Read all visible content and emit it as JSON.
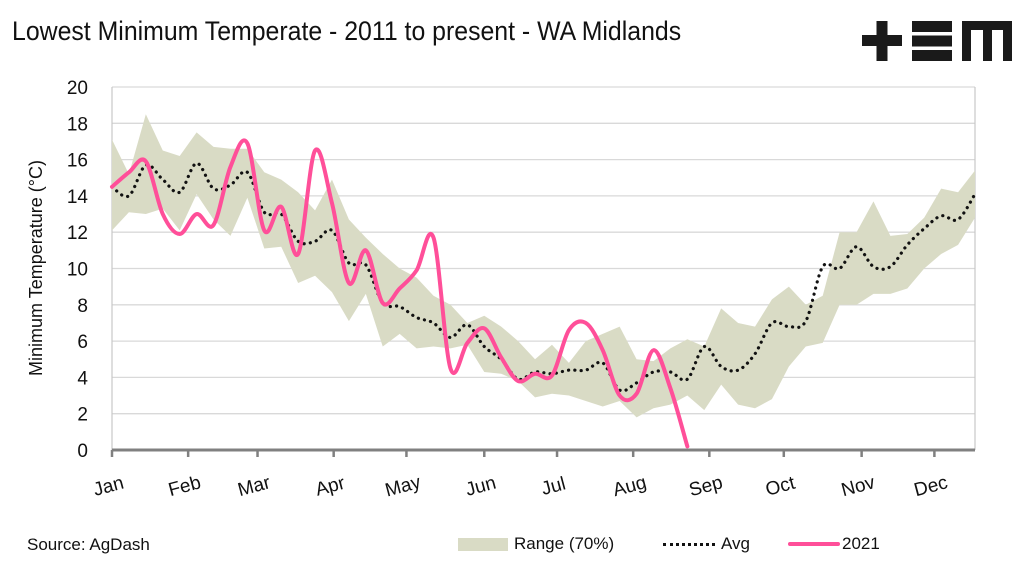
{
  "header": {
    "title": "Lowest Minimum Temperate - 2011 to present - WA Midlands",
    "logo_text": "+EM",
    "logo_icon": "tem-logo"
  },
  "footer": {
    "source": "Source: AgDash"
  },
  "legend": {
    "range_label": "Range (70%)",
    "avg_label": "Avg",
    "year_label": "2021"
  },
  "colors": {
    "range_fill": "#d9dbc5",
    "avg_line": "#111111",
    "year_line": "#ff4f99",
    "grid": "#d9d9d9",
    "axis": "#808080"
  },
  "chart_data": {
    "type": "line",
    "title": "Lowest Minimum Temperate - 2011 to present - WA Midlands",
    "xlabel": "",
    "ylabel": "Minimum Temperature (°C)",
    "ylim": [
      0,
      20
    ],
    "yticks": [
      0,
      2,
      4,
      6,
      8,
      10,
      12,
      14,
      16,
      18,
      20
    ],
    "grid": true,
    "legend_position": "bottom-right",
    "x_unit": "week of year",
    "xlim": [
      0,
      51
    ],
    "month_ticks": [
      {
        "label": "Jan",
        "week": 0
      },
      {
        "label": "Feb",
        "week": 4.5
      },
      {
        "label": "Mar",
        "week": 8.6
      },
      {
        "label": "Apr",
        "week": 13.1
      },
      {
        "label": "May",
        "week": 17.4
      },
      {
        "label": "Jun",
        "week": 22
      },
      {
        "label": "Jul",
        "week": 26.3
      },
      {
        "label": "Aug",
        "week": 30.8
      },
      {
        "label": "Sep",
        "week": 35.3
      },
      {
        "label": "Oct",
        "week": 39.7
      },
      {
        "label": "Nov",
        "week": 44.3
      },
      {
        "label": "Dec",
        "week": 48.6
      }
    ],
    "series": [
      {
        "name": "Range (70%)",
        "kind": "band",
        "x": [
          0,
          1,
          2,
          3,
          4,
          5,
          6,
          7,
          8,
          9,
          10,
          11,
          12,
          13,
          14,
          15,
          16,
          17,
          18,
          19,
          20,
          21,
          22,
          23,
          24,
          25,
          26,
          27,
          28,
          29,
          30,
          31,
          32,
          33,
          34,
          35,
          36,
          37,
          38,
          39,
          40,
          41,
          42,
          43,
          44,
          45,
          46,
          47,
          48,
          49,
          50,
          51
        ],
        "upper": [
          17.1,
          15.2,
          18.5,
          16.5,
          16.2,
          17.5,
          16.7,
          16.6,
          16.6,
          15.3,
          14.9,
          14.2,
          13.2,
          14.9,
          12.7,
          11.7,
          10.8,
          10.0,
          9.5,
          8.5,
          8.0,
          7.0,
          7.4,
          6.8,
          6.0,
          5.0,
          5.8,
          4.8,
          6.0,
          6.4,
          6.8,
          5.0,
          4.9,
          5.6,
          6.1,
          5.7,
          7.8,
          7.0,
          6.8,
          8.3,
          9.0,
          8.0,
          8.5,
          12.0,
          12.0,
          13.7,
          11.8,
          11.9,
          12.8,
          14.4,
          14.2,
          15.4
        ],
        "lower": [
          12.1,
          13.1,
          13.0,
          13.3,
          12.1,
          14.1,
          12.7,
          11.8,
          13.9,
          11.1,
          11.2,
          9.2,
          9.6,
          8.7,
          7.1,
          8.6,
          5.7,
          6.4,
          5.6,
          5.7,
          5.6,
          5.8,
          4.3,
          4.2,
          3.8,
          2.9,
          3.1,
          3.0,
          2.7,
          2.4,
          2.7,
          1.8,
          2.3,
          2.5,
          3.0,
          2.2,
          3.6,
          2.5,
          2.3,
          2.8,
          4.6,
          5.7,
          5.9,
          8.0,
          8.0,
          8.6,
          8.6,
          8.9,
          10.0,
          10.8,
          11.3,
          12.8
        ]
      },
      {
        "name": "Avg",
        "kind": "dotted-line",
        "x": [
          0,
          1,
          2,
          3,
          4,
          5,
          6,
          7,
          8,
          9,
          10,
          11,
          12,
          13,
          14,
          15,
          16,
          17,
          18,
          19,
          20,
          21,
          22,
          23,
          24,
          25,
          26,
          27,
          28,
          29,
          30,
          31,
          32,
          33,
          34,
          35,
          36,
          37,
          38,
          39,
          40,
          41,
          42,
          43,
          44,
          45,
          46,
          47,
          48,
          49,
          50,
          51
        ],
        "values": [
          14.5,
          14.0,
          15.7,
          14.9,
          14.2,
          15.8,
          14.4,
          14.6,
          15.3,
          13.1,
          13.0,
          11.5,
          11.5,
          12.1,
          10.3,
          10.2,
          8.1,
          7.9,
          7.3,
          7.0,
          6.2,
          6.9,
          5.7,
          5.0,
          3.9,
          4.3,
          4.2,
          4.4,
          4.4,
          4.8,
          3.3,
          3.7,
          4.3,
          4.3,
          3.9,
          5.7,
          4.6,
          4.4,
          5.3,
          7.0,
          6.8,
          7.1,
          10.1,
          10.0,
          11.2,
          10.1,
          10.1,
          11.3,
          12.2,
          12.9,
          12.7,
          14.1
        ]
      },
      {
        "name": "2021",
        "kind": "line",
        "x": [
          0,
          1,
          2,
          3,
          4,
          5,
          6,
          7,
          8,
          9,
          10,
          11,
          12,
          13,
          14,
          15,
          16,
          17,
          18,
          19,
          20,
          21,
          22,
          23,
          24,
          25,
          26,
          27,
          28,
          29,
          30,
          31,
          32,
          33,
          34,
          35
        ],
        "values": [
          14.5,
          15.3,
          15.9,
          13.0,
          11.9,
          13.0,
          12.4,
          15.6,
          16.9,
          12.1,
          13.4,
          10.8,
          16.5,
          13.6,
          9.2,
          11.0,
          8.1,
          8.9,
          9.9,
          11.7,
          4.5,
          5.9,
          6.7,
          5.1,
          3.8,
          4.2,
          4.1,
          6.6,
          7.0,
          5.5,
          3.0,
          3.1,
          5.5,
          3.4,
          0.2,
          null
        ]
      }
    ]
  }
}
